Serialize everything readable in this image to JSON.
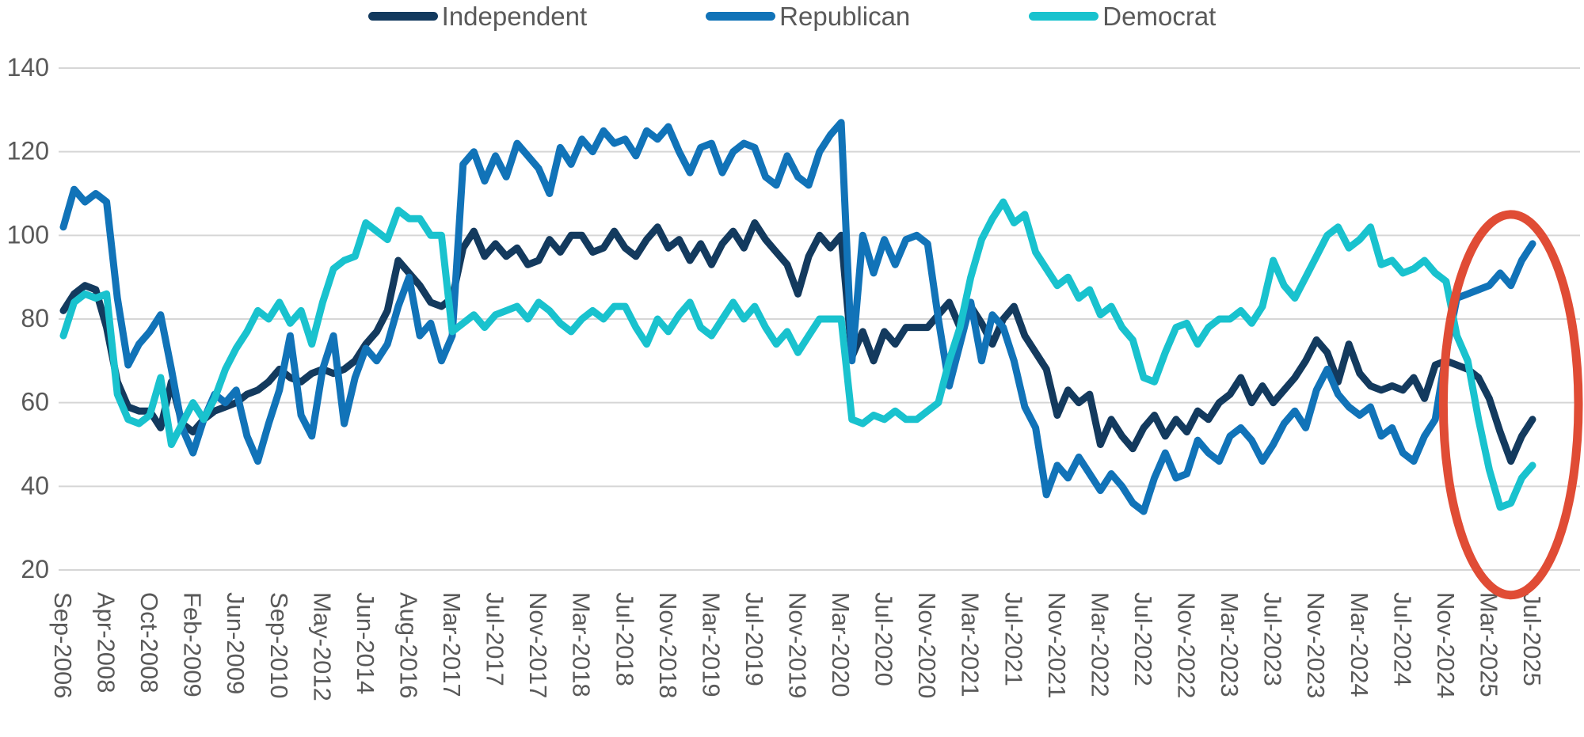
{
  "legend": [
    {
      "label": "Independent",
      "color": "#133A5E"
    },
    {
      "label": "Republican",
      "color": "#1173B8"
    },
    {
      "label": "Democrat",
      "color": "#19C2CE"
    }
  ],
  "chart_data": {
    "type": "line",
    "title": "",
    "xlabel": "",
    "ylabel": "",
    "ylim": [
      20,
      140
    ],
    "y_ticks": [
      20,
      40,
      60,
      80,
      100,
      120,
      140
    ],
    "grid": "horizontal",
    "gridline_color": "#D6D6D6",
    "text_color": "#595959",
    "points_per_label": 4,
    "x_tick_labels": [
      "Sep-2006",
      "Apr-2008",
      "Oct-2008",
      "Feb-2009",
      "Jun-2009",
      "Sep-2010",
      "May-2012",
      "Jun-2014",
      "Aug-2016",
      "Mar-2017",
      "Jul-2017",
      "Nov-2017",
      "Mar-2018",
      "Jul-2018",
      "Nov-2018",
      "Mar-2019",
      "Jul-2019",
      "Nov-2019",
      "Mar-2020",
      "Jul-2020",
      "Nov-2020",
      "Mar-2021",
      "Jul-2021",
      "Nov-2021",
      "Mar-2022",
      "Jul-2022",
      "Nov-2022",
      "Mar-2023",
      "Jul-2023",
      "Nov-2023",
      "Mar-2024",
      "Jul-2024",
      "Nov-2024",
      "Mar-2025",
      "Jul-2025"
    ],
    "series": [
      {
        "name": "Independent",
        "color": "#133A5E",
        "values": [
          82,
          86,
          88,
          87,
          78,
          65,
          59,
          58,
          58,
          54,
          65,
          55,
          53,
          56,
          58,
          59,
          60,
          62,
          63,
          65,
          68,
          66,
          65,
          67,
          68,
          67,
          68,
          70,
          74,
          77,
          82,
          94,
          91,
          88,
          84,
          83,
          85,
          97,
          101,
          95,
          98,
          95,
          97,
          93,
          94,
          99,
          96,
          100,
          100,
          96,
          97,
          101,
          97,
          95,
          99,
          102,
          97,
          99,
          94,
          98,
          93,
          98,
          101,
          97,
          103,
          99,
          96,
          93,
          86,
          95,
          100,
          97,
          100,
          71,
          77,
          70,
          77,
          74,
          78,
          78,
          78,
          81,
          84,
          78,
          83,
          79,
          74,
          80,
          83,
          76,
          72,
          68,
          57,
          63,
          60,
          62,
          50,
          56,
          52,
          49,
          54,
          57,
          52,
          56,
          53,
          58,
          56,
          60,
          62,
          66,
          60,
          64,
          60,
          63,
          66,
          70,
          75,
          72,
          65,
          74,
          67,
          64,
          63,
          64,
          63,
          66,
          61,
          69,
          70,
          69,
          68,
          66,
          61,
          53,
          46,
          52,
          56
        ]
      },
      {
        "name": "Republican",
        "color": "#1173B8",
        "values": [
          102,
          111,
          108,
          110,
          108,
          85,
          69,
          74,
          77,
          81,
          68,
          54,
          48,
          56,
          62,
          60,
          63,
          52,
          46,
          55,
          63,
          76,
          57,
          52,
          68,
          76,
          55,
          66,
          73,
          70,
          74,
          83,
          90,
          76,
          79,
          70,
          76,
          117,
          120,
          113,
          119,
          114,
          122,
          119,
          116,
          110,
          121,
          117,
          123,
          120,
          125,
          122,
          123,
          119,
          125,
          123,
          126,
          120,
          115,
          121,
          122,
          115,
          120,
          122,
          121,
          114,
          112,
          119,
          114,
          112,
          120,
          124,
          127,
          70,
          100,
          91,
          99,
          93,
          99,
          100,
          98,
          80,
          64,
          74,
          84,
          70,
          81,
          78,
          70,
          59,
          54,
          38,
          45,
          42,
          47,
          43,
          39,
          43,
          40,
          36,
          34,
          42,
          48,
          42,
          43,
          51,
          48,
          46,
          52,
          54,
          51,
          46,
          50,
          55,
          58,
          54,
          63,
          68,
          62,
          59,
          57,
          59,
          52,
          54,
          48,
          46,
          52,
          56,
          72,
          85,
          86,
          87,
          88,
          91,
          88,
          94,
          98
        ]
      },
      {
        "name": "Democrat",
        "color": "#19C2CE",
        "values": [
          76,
          84,
          86,
          85,
          86,
          62,
          56,
          55,
          57,
          66,
          50,
          55,
          60,
          56,
          61,
          68,
          73,
          77,
          82,
          80,
          84,
          79,
          82,
          74,
          84,
          92,
          94,
          95,
          103,
          101,
          99,
          106,
          104,
          104,
          100,
          100,
          77,
          79,
          81,
          78,
          81,
          82,
          83,
          80,
          84,
          82,
          79,
          77,
          80,
          82,
          80,
          83,
          83,
          78,
          74,
          80,
          77,
          81,
          84,
          78,
          76,
          80,
          84,
          80,
          83,
          78,
          74,
          77,
          72,
          76,
          80,
          80,
          80,
          56,
          55,
          57,
          56,
          58,
          56,
          56,
          58,
          60,
          70,
          78,
          90,
          99,
          104,
          108,
          103,
          105,
          96,
          92,
          88,
          90,
          85,
          87,
          81,
          83,
          78,
          75,
          66,
          65,
          72,
          78,
          79,
          74,
          78,
          80,
          80,
          82,
          79,
          83,
          94,
          88,
          85,
          90,
          95,
          100,
          102,
          97,
          99,
          102,
          93,
          94,
          91,
          92,
          94,
          91,
          89,
          76,
          70,
          56,
          44,
          35,
          36,
          42,
          45
        ]
      }
    ],
    "annotation": {
      "shape": "ellipse",
      "stroke_color": "#E04C35",
      "label_from": "Mar-2025",
      "label_to": "Jul-2025",
      "value_top": 105,
      "value_bottom": 14,
      "meaning": "highlights post-Nov-2024 divergence"
    }
  }
}
